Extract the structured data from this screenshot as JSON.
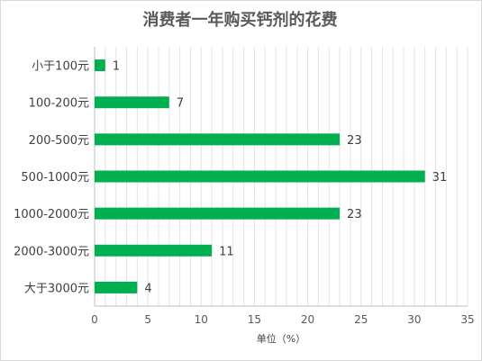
{
  "chart_data": {
    "type": "bar",
    "orientation": "horizontal",
    "title": "消费者一年购买钙剂的花费",
    "xlabel": "单位（%）",
    "ylabel": "",
    "categories": [
      "小于100元",
      "100-200元",
      "200-500元",
      "500-1000元",
      "1000-2000元",
      "2000-3000元",
      "大于3000元"
    ],
    "values": [
      1,
      7,
      23,
      31,
      23,
      11,
      4
    ],
    "xlim": [
      0,
      35
    ],
    "xticks": [
      0,
      5,
      10,
      15,
      20,
      25,
      30,
      35
    ],
    "minor_grid_step": 1,
    "grid": true,
    "data_labels": true,
    "bar_color": "#00b050",
    "grid_color": "#e3e3e3",
    "axis_color": "#bfbfbf"
  }
}
